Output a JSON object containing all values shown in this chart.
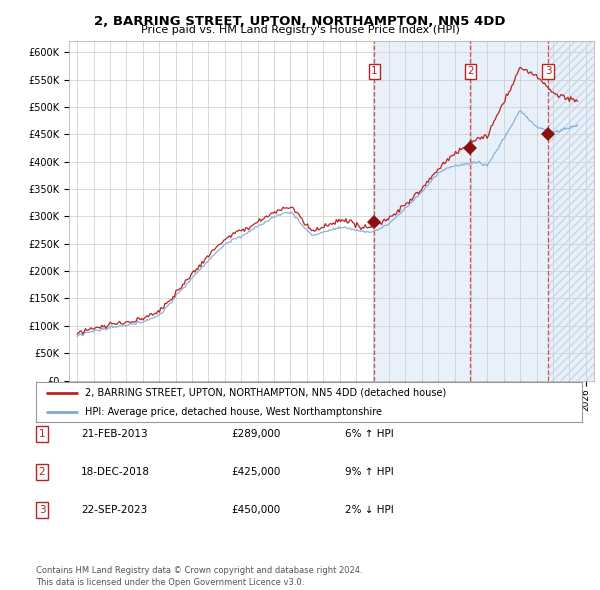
{
  "title": "2, BARRING STREET, UPTON, NORTHAMPTON, NN5 4DD",
  "subtitle": "Price paid vs. HM Land Registry's House Price Index (HPI)",
  "title_fontsize": 9.5,
  "subtitle_fontsize": 8,
  "ylabel_ticks": [
    "£0",
    "£50K",
    "£100K",
    "£150K",
    "£200K",
    "£250K",
    "£300K",
    "£350K",
    "£400K",
    "£450K",
    "£500K",
    "£550K",
    "£600K"
  ],
  "ylim": [
    0,
    620000
  ],
  "xlim_start": 1994.5,
  "xlim_end": 2026.5,
  "hpi_color": "#7aabdb",
  "price_color": "#bb2222",
  "sale_dates": [
    2013.12,
    2018.97,
    2023.72
  ],
  "sale_prices": [
    289000,
    425000,
    450000
  ],
  "sale_labels": [
    "1",
    "2",
    "3"
  ],
  "legend_entries": [
    "2, BARRING STREET, UPTON, NORTHAMPTON, NN5 4DD (detached house)",
    "HPI: Average price, detached house, West Northamptonshire"
  ],
  "table_rows": [
    [
      "1",
      "21-FEB-2013",
      "£289,000",
      "6% ↑ HPI"
    ],
    [
      "2",
      "18-DEC-2018",
      "£425,000",
      "9% ↑ HPI"
    ],
    [
      "3",
      "22-SEP-2023",
      "£450,000",
      "2% ↓ HPI"
    ]
  ],
  "footnote": "Contains HM Land Registry data © Crown copyright and database right 2024.\nThis data is licensed under the Open Government Licence v3.0.",
  "bg_shaded_color": "#ddeeff",
  "grid_color": "#cccccc"
}
